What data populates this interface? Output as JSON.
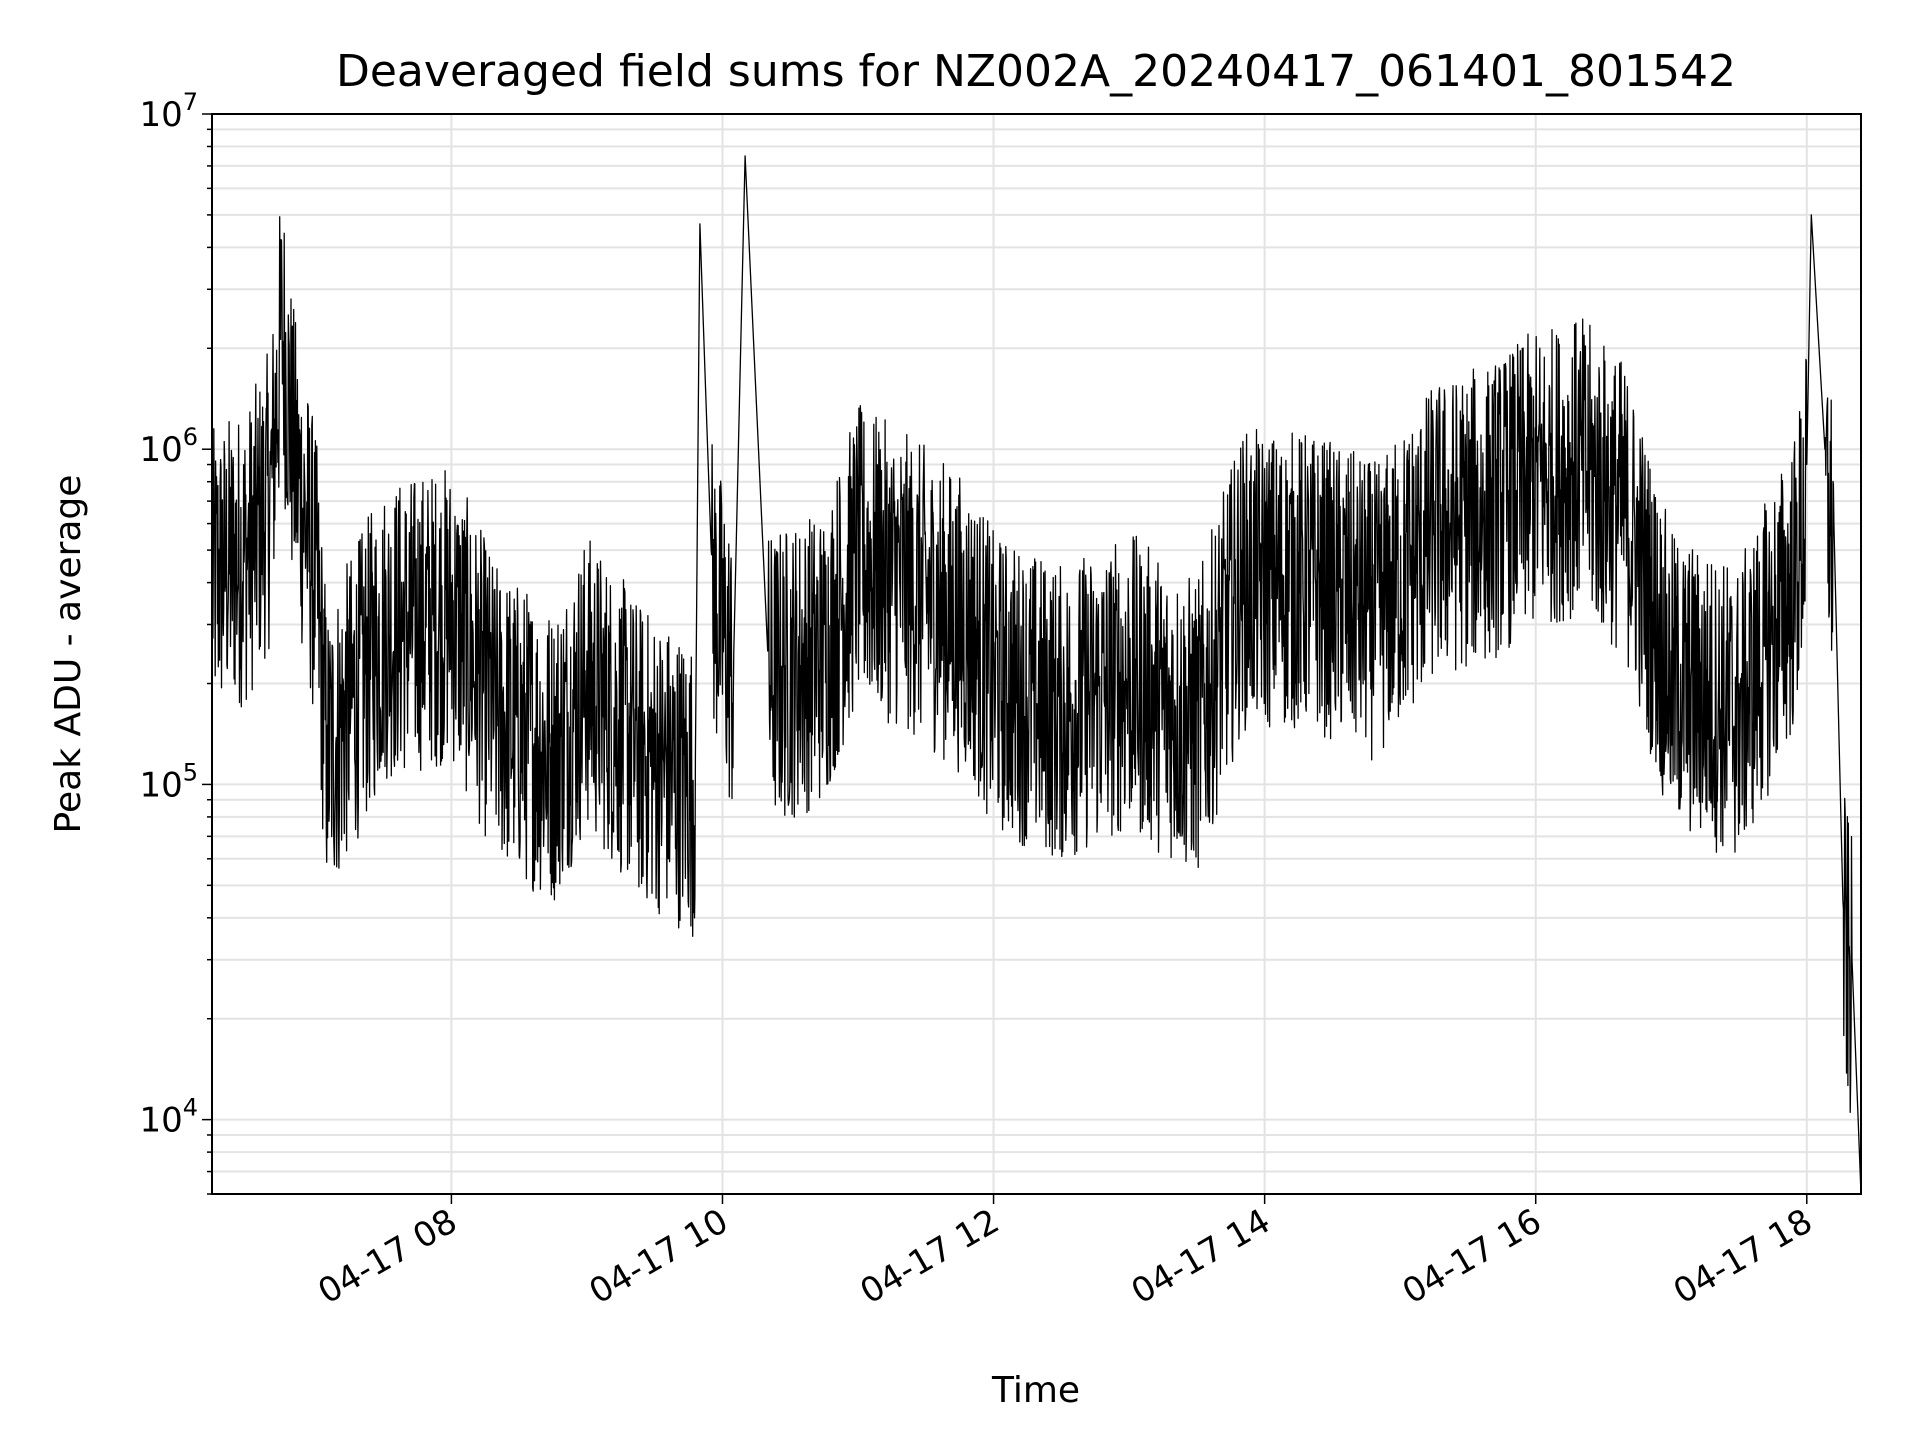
{
  "chart_data": {
    "type": "line",
    "title": "Deaveraged field sums for NZ002A_20240417_061401_801542",
    "xlabel": "Time",
    "ylabel": "Peak ADU - average",
    "yscale": "log",
    "xlim": [
      "2024-04-17T06:14:01",
      "2024-04-17T18:24:00"
    ],
    "ylim": [
      6000,
      10000000
    ],
    "grid": true,
    "x_tick_labels": [
      "04-17 08",
      "04-17 10",
      "04-17 12",
      "04-17 14",
      "04-17 16",
      "04-17 18"
    ],
    "x_tick_times": [
      "2024-04-17T08:00:00",
      "2024-04-17T10:00:00",
      "2024-04-17T12:00:00",
      "2024-04-17T14:00:00",
      "2024-04-17T16:00:00",
      "2024-04-17T18:00:00"
    ],
    "y_ticks": [
      {
        "base": "10",
        "exp": "4",
        "value": 10000
      },
      {
        "base": "10",
        "exp": "5",
        "value": 100000
      },
      {
        "base": "10",
        "exp": "6",
        "value": 1000000
      },
      {
        "base": "10",
        "exp": "7",
        "value": 10000000
      }
    ],
    "series": [
      {
        "color": "#000000",
        "points": [
          [
            "2024-04-17T06:14:01",
            500000
          ],
          [
            "2024-04-17T06:20:00",
            550000
          ],
          [
            "2024-04-17T06:30:00",
            600000
          ],
          [
            "2024-04-17T06:40:00",
            900000
          ],
          [
            "2024-04-17T06:45:00",
            2900000
          ],
          [
            "2024-04-17T06:50:00",
            1200000
          ],
          [
            "2024-04-17T07:00:00",
            500000
          ],
          [
            "2024-04-17T07:05:00",
            150000
          ],
          [
            "2024-04-17T07:30:00",
            350000
          ],
          [
            "2024-04-17T08:00:00",
            400000
          ],
          [
            "2024-04-17T08:20:00",
            200000
          ],
          [
            "2024-04-17T08:45:00",
            150000
          ],
          [
            "2024-04-17T09:00:00",
            250000
          ],
          [
            "2024-04-17T09:25:00",
            150000
          ],
          [
            "2024-04-17T09:48:00",
            120000
          ],
          [
            "2024-04-17T09:50:00",
            4700000
          ],
          [
            "2024-04-17T09:55:00",
            500000
          ],
          [
            "2024-04-17T10:05:00",
            250000
          ],
          [
            "2024-04-17T10:10:00",
            7500000
          ],
          [
            "2024-04-17T10:20:00",
            250000
          ],
          [
            "2024-04-17T10:45:00",
            300000
          ],
          [
            "2024-04-17T11:00:00",
            600000
          ],
          [
            "2024-04-17T11:30:00",
            450000
          ],
          [
            "2024-04-17T11:50:00",
            350000
          ],
          [
            "2024-04-17T12:00:00",
            250000
          ],
          [
            "2024-04-17T12:30:00",
            200000
          ],
          [
            "2024-04-17T13:00:00",
            250000
          ],
          [
            "2024-04-17T13:30:00",
            180000
          ],
          [
            "2024-04-17T13:50:00",
            500000
          ],
          [
            "2024-04-17T14:20:00",
            500000
          ],
          [
            "2024-04-17T14:50:00",
            400000
          ],
          [
            "2024-04-17T15:15:00",
            700000
          ],
          [
            "2024-04-17T15:40:00",
            800000
          ],
          [
            "2024-04-17T16:00:00",
            1000000
          ],
          [
            "2024-04-17T16:20:00",
            1100000
          ],
          [
            "2024-04-17T16:40:00",
            800000
          ],
          [
            "2024-04-17T17:00:00",
            250000
          ],
          [
            "2024-04-17T17:30:00",
            200000
          ],
          [
            "2024-04-17T17:55:00",
            500000
          ],
          [
            "2024-04-17T18:00:00",
            900000
          ],
          [
            "2024-04-17T18:02:00",
            5000000
          ],
          [
            "2024-04-17T18:08:00",
            1000000
          ],
          [
            "2024-04-17T18:12:00",
            600000
          ],
          [
            "2024-04-17T18:16:00",
            45000
          ],
          [
            "2024-04-17T18:20:00",
            30000
          ],
          [
            "2024-04-17T18:24:00",
            6000
          ]
        ]
      }
    ]
  }
}
